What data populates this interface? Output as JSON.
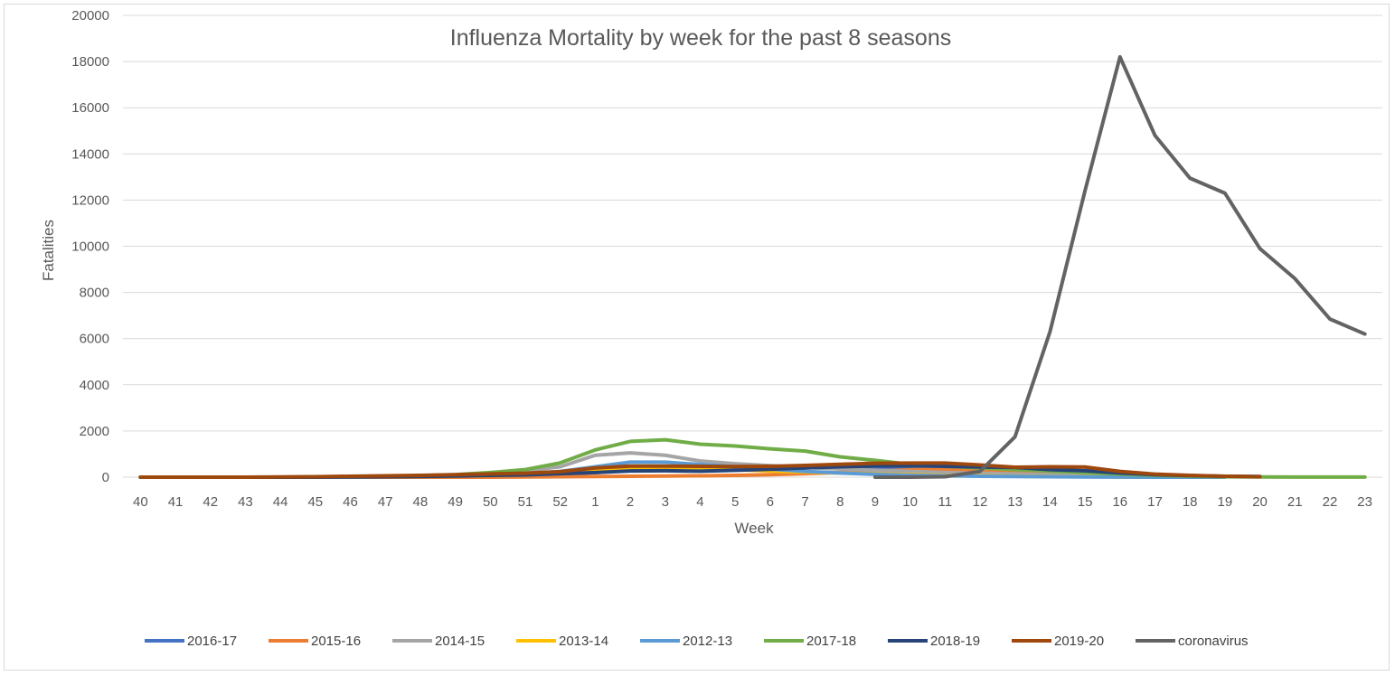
{
  "chart_data": {
    "type": "line",
    "title": "Influenza Mortality by week for the past 8 seasons",
    "xlabel": "Week",
    "ylabel": "Fatalities",
    "ylim": [
      0,
      20000
    ],
    "yticks": [
      "0",
      "2000",
      "4000",
      "6000",
      "8000",
      "10000",
      "12000",
      "14000",
      "16000",
      "18000",
      "20000"
    ],
    "categories": [
      "40",
      "41",
      "42",
      "43",
      "44",
      "45",
      "46",
      "47",
      "48",
      "49",
      "50",
      "51",
      "52",
      "1",
      "2",
      "3",
      "4",
      "5",
      "6",
      "7",
      "8",
      "9",
      "10",
      "11",
      "12",
      "13",
      "14",
      "15",
      "16",
      "17",
      "18",
      "19",
      "20",
      "21",
      "22",
      "23"
    ],
    "grid": true,
    "legend_position": "bottom",
    "series": [
      {
        "name": "2016-17",
        "color": "#4472c4",
        "values": [
          0,
          0,
          0,
          0,
          0,
          0,
          10,
          20,
          30,
          50,
          80,
          100,
          130,
          200,
          300,
          380,
          440,
          450,
          450,
          460,
          450,
          420,
          380,
          320,
          260,
          200,
          150,
          110,
          70,
          40,
          20,
          10,
          null,
          null,
          null,
          null
        ]
      },
      {
        "name": "2015-16",
        "color": "#ed7d31",
        "values": [
          0,
          0,
          0,
          0,
          0,
          0,
          0,
          0,
          0,
          0,
          0,
          10,
          20,
          30,
          40,
          50,
          60,
          80,
          110,
          150,
          200,
          260,
          320,
          330,
          290,
          240,
          190,
          140,
          100,
          60,
          30,
          10,
          null,
          null,
          null,
          null
        ]
      },
      {
        "name": "2014-15",
        "color": "#a5a5a5",
        "values": [
          0,
          0,
          0,
          0,
          0,
          10,
          20,
          40,
          60,
          100,
          180,
          280,
          450,
          950,
          1050,
          950,
          700,
          580,
          500,
          420,
          350,
          300,
          250,
          200,
          170,
          140,
          110,
          80,
          50,
          30,
          20,
          10,
          null,
          null,
          null,
          null
        ]
      },
      {
        "name": "2013-14",
        "color": "#ffc000",
        "values": [
          0,
          0,
          0,
          0,
          0,
          0,
          10,
          20,
          30,
          50,
          80,
          120,
          180,
          300,
          380,
          400,
          380,
          330,
          270,
          220,
          180,
          140,
          110,
          80,
          60,
          40,
          30,
          20,
          10,
          5,
          0,
          0,
          null,
          null,
          null,
          null
        ]
      },
      {
        "name": "2012-13",
        "color": "#5b9bd5",
        "values": [
          0,
          0,
          0,
          0,
          0,
          0,
          10,
          20,
          40,
          60,
          100,
          150,
          250,
          450,
          650,
          650,
          550,
          450,
          350,
          250,
          180,
          120,
          80,
          60,
          40,
          30,
          20,
          10,
          5,
          0,
          0,
          0,
          null,
          null,
          null,
          null
        ]
      },
      {
        "name": "2017-18",
        "color": "#70ad47",
        "values": [
          0,
          0,
          0,
          0,
          0,
          10,
          20,
          40,
          70,
          110,
          200,
          330,
          620,
          1180,
          1550,
          1620,
          1430,
          1350,
          1230,
          1130,
          880,
          730,
          560,
          470,
          400,
          330,
          270,
          200,
          130,
          80,
          40,
          20,
          10,
          5,
          5,
          5
        ]
      },
      {
        "name": "2018-19",
        "color": "#264478",
        "values": [
          0,
          0,
          0,
          0,
          0,
          0,
          10,
          20,
          30,
          50,
          80,
          100,
          150,
          200,
          270,
          280,
          260,
          300,
          340,
          400,
          450,
          490,
          500,
          470,
          440,
          420,
          330,
          280,
          180,
          110,
          70,
          40,
          30,
          null,
          null,
          null
        ]
      },
      {
        "name": "2019-20",
        "color": "#9e480e",
        "values": [
          0,
          0,
          0,
          0,
          10,
          20,
          40,
          60,
          80,
          110,
          140,
          170,
          240,
          400,
          480,
          480,
          470,
          460,
          470,
          510,
          560,
          600,
          610,
          610,
          530,
          430,
          450,
          440,
          250,
          130,
          80,
          40,
          20,
          null,
          null,
          null
        ]
      },
      {
        "name": "coronavirus",
        "color": "#636363",
        "values": [
          null,
          null,
          null,
          null,
          null,
          null,
          null,
          null,
          null,
          null,
          null,
          null,
          null,
          null,
          null,
          null,
          null,
          null,
          null,
          null,
          null,
          0,
          0,
          20,
          250,
          1750,
          6300,
          12400,
          18200,
          14800,
          12950,
          12300,
          9900,
          8600,
          6850,
          6200
        ]
      }
    ]
  }
}
